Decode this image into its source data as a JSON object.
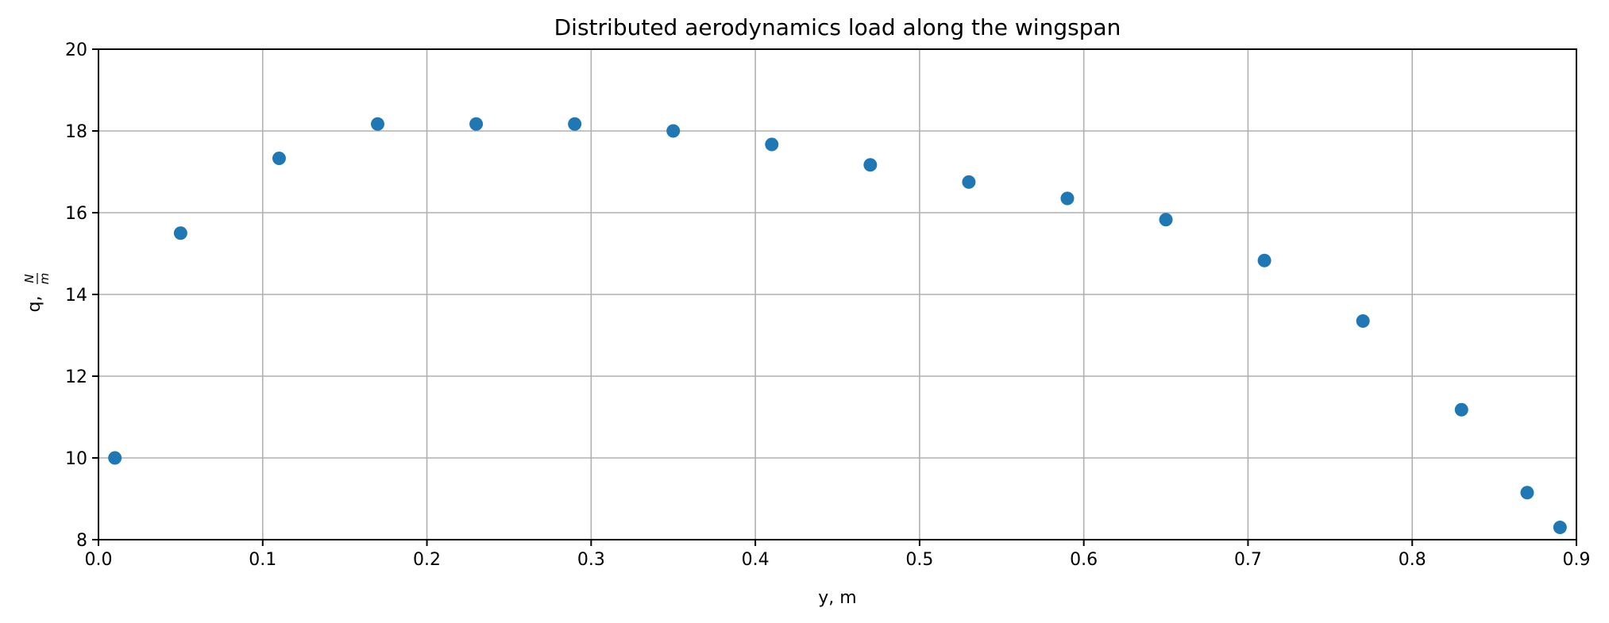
{
  "chart_data": {
    "type": "scatter",
    "title": "Distributed aerodynamics load along the wingspan",
    "xlabel": "y, m",
    "ylabel": "q, N/m",
    "ylabel_prefix": "q,",
    "ylabel_num": "N",
    "ylabel_den": "m",
    "xlim": [
      0.0,
      0.9
    ],
    "ylim": [
      8,
      20
    ],
    "xticks": [
      "0.0",
      "0.1",
      "0.2",
      "0.3",
      "0.4",
      "0.5",
      "0.6",
      "0.7",
      "0.8",
      "0.9"
    ],
    "yticks": [
      "8",
      "10",
      "12",
      "14",
      "16",
      "18",
      "20"
    ],
    "grid": true,
    "marker_color": "#1f77b4",
    "series": [
      {
        "x": [
          0.01,
          0.05,
          0.11,
          0.17,
          0.23,
          0.29,
          0.35,
          0.41,
          0.47,
          0.53,
          0.59,
          0.65,
          0.71,
          0.77,
          0.83,
          0.87,
          0.89
        ],
        "y": [
          10.0,
          15.5,
          17.33,
          18.17,
          18.17,
          18.17,
          18.0,
          17.67,
          17.17,
          16.75,
          16.35,
          15.83,
          14.83,
          13.35,
          11.18,
          9.15,
          8.3
        ]
      }
    ]
  }
}
